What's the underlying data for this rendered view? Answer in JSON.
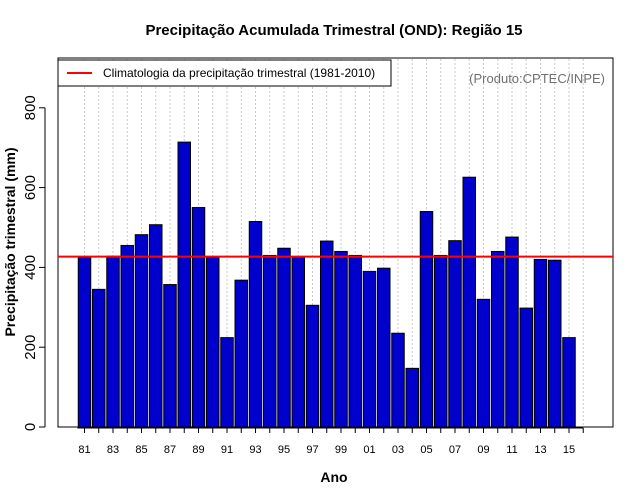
{
  "chart_data": {
    "type": "bar",
    "title": "Precipitação Acumulada Trimestral (OND): Região 15",
    "xlabel": "Ano",
    "ylabel": "Precipitação trimestral (mm)",
    "credit": "(Produto:CPTEC/INPE)",
    "legend": {
      "label": "Climatologia da precipitação trimestral (1981-2010)",
      "placement": "top-left",
      "color": "#ff0000"
    },
    "climatology": 427,
    "ylim": [
      0,
      900
    ],
    "yticks": [
      0,
      200,
      400,
      600,
      800
    ],
    "bar_color": "#0000cc",
    "x": [
      "81",
      "82",
      "83",
      "84",
      "85",
      "86",
      "87",
      "88",
      "89",
      "90",
      "91",
      "92",
      "93",
      "94",
      "95",
      "96",
      "97",
      "98",
      "99",
      "00",
      "01",
      "02",
      "03",
      "04",
      "05",
      "06",
      "07",
      "08",
      "09",
      "10",
      "11",
      "12",
      "13",
      "14",
      "15"
    ],
    "xtick_labels": [
      "81",
      "83",
      "85",
      "87",
      "89",
      "91",
      "93",
      "95",
      "97",
      "99",
      "01",
      "03",
      "05",
      "07",
      "09",
      "11",
      "13",
      "15"
    ],
    "values": [
      425,
      345,
      428,
      455,
      482,
      507,
      357,
      714,
      550,
      425,
      224,
      368,
      515,
      430,
      448,
      426,
      305,
      466,
      440,
      430,
      390,
      398,
      235,
      147,
      540,
      430,
      467,
      626,
      320,
      440,
      476,
      298,
      420,
      418,
      224
    ]
  }
}
